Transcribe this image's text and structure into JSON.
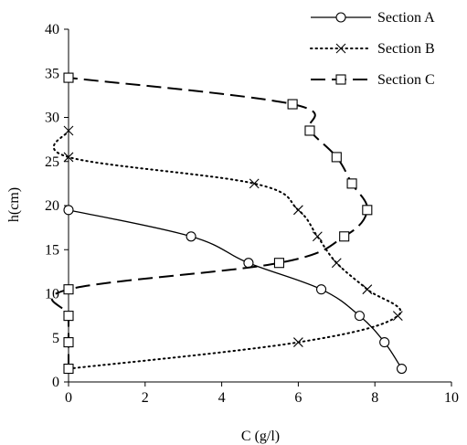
{
  "chart_data": {
    "type": "scatter",
    "xlabel": "C (g/l)",
    "ylabel": "h(cm)",
    "xlim": [
      0,
      10
    ],
    "ylim": [
      0,
      40
    ],
    "xticks": [
      "0",
      "2",
      "4",
      "6",
      "8",
      "10"
    ],
    "yticks": [
      "0",
      "5",
      "10",
      "15",
      "20",
      "25",
      "30",
      "35",
      "40"
    ],
    "grid": false,
    "legend_position": "top-right",
    "series": [
      {
        "name": "Section A",
        "marker": "circle",
        "line": "solid",
        "points": [
          [
            0,
            19.5
          ],
          [
            3.2,
            16.5
          ],
          [
            4.7,
            13.5
          ],
          [
            6.6,
            10.5
          ],
          [
            7.6,
            7.5
          ],
          [
            8.25,
            4.5
          ],
          [
            8.7,
            1.5
          ]
        ]
      },
      {
        "name": "Section B",
        "marker": "x",
        "line": "dotted",
        "points": [
          [
            0,
            1.5
          ],
          [
            6.0,
            4.5
          ],
          [
            8.6,
            7.5
          ],
          [
            7.8,
            10.5
          ],
          [
            7.0,
            13.5
          ],
          [
            6.5,
            16.5
          ],
          [
            6.0,
            19.5
          ],
          [
            4.85,
            22.5
          ],
          [
            0,
            25.5
          ],
          [
            0,
            28.5
          ]
        ]
      },
      {
        "name": "Section C",
        "marker": "square",
        "line": "dashed",
        "points": [
          [
            0,
            1.5
          ],
          [
            0,
            4.5
          ],
          [
            0,
            7.5
          ],
          [
            0,
            10.5
          ],
          [
            5.5,
            13.5
          ],
          [
            7.2,
            16.5
          ],
          [
            7.8,
            19.5
          ],
          [
            7.4,
            22.5
          ],
          [
            7.0,
            25.5
          ],
          [
            6.3,
            28.5
          ],
          [
            5.85,
            31.5
          ],
          [
            0,
            34.5
          ]
        ]
      }
    ]
  }
}
